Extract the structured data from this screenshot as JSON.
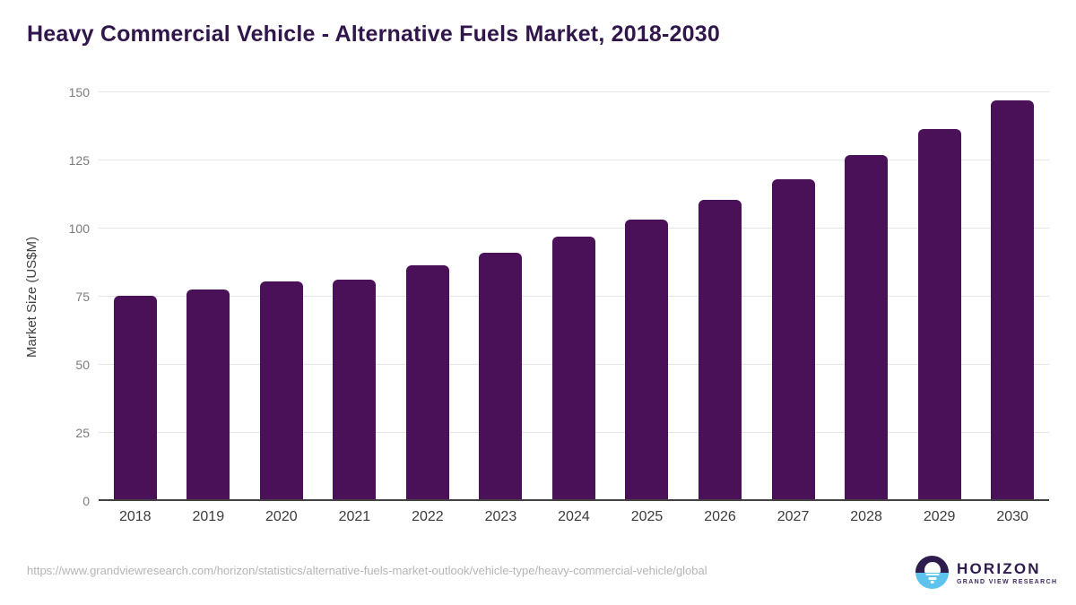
{
  "title": "Heavy Commercial Vehicle - Alternative Fuels Market, 2018-2030",
  "chart_data": {
    "type": "bar",
    "categories": [
      "2018",
      "2019",
      "2020",
      "2021",
      "2022",
      "2023",
      "2024",
      "2025",
      "2026",
      "2027",
      "2028",
      "2029",
      "2030"
    ],
    "values": [
      75.4,
      77.8,
      80.7,
      81.2,
      86.5,
      91.1,
      96.9,
      103.4,
      110.4,
      118.2,
      126.9,
      136.4,
      147.2
    ],
    "title": "Heavy Commercial Vehicle - Alternative Fuels Market, 2018-2030",
    "xlabel": "",
    "ylabel": "Market Size (US$M)",
    "ylim": [
      0,
      150
    ],
    "yticks": [
      0,
      25,
      50,
      75,
      100,
      125,
      150
    ],
    "grid": true,
    "legend": "none",
    "bar_color": "#4a1159"
  },
  "footer": {
    "source_url": "https://www.grandviewresearch.com/horizon/statistics/alternative-fuels-market-outlook/vehicle-type/heavy-commercial-vehicle/global",
    "logo": {
      "title": "HORIZON",
      "subtitle": "GRAND VIEW RESEARCH"
    }
  },
  "colors": {
    "bar": "#4a1159",
    "title_text": "#31164b",
    "axis_text": "#7b7b7b",
    "x_axis_text": "#3c3c3c",
    "gridline": "#e4e4e4",
    "baseline": "#424242",
    "source_text": "#b5b5b5",
    "logo_purple": "#2e1c4e",
    "logo_blue": "#5ec3ec"
  }
}
